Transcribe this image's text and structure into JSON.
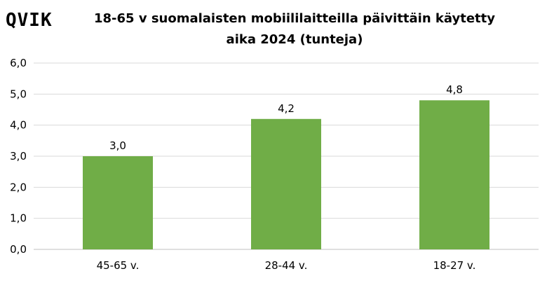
{
  "brand": {
    "logo_text": "QVIK"
  },
  "chart_data": {
    "type": "bar",
    "title": "18-65 v suomalaisten mobiililaitteilla päivittäin käytetty aika 2024 (tunteja)",
    "categories": [
      "45-65 v.",
      "28-44 v.",
      "18-27 v."
    ],
    "values": [
      3.0,
      4.2,
      4.8
    ],
    "value_labels": [
      "3,0",
      "4,2",
      "4,8"
    ],
    "ytick_labels": [
      "0,0",
      "1,0",
      "2,0",
      "3,0",
      "4,0",
      "5,0",
      "6,0"
    ],
    "ylim": [
      0,
      6
    ],
    "grid": true,
    "bar_color": "#70ad47",
    "grid_color": "#d9d9d9"
  }
}
